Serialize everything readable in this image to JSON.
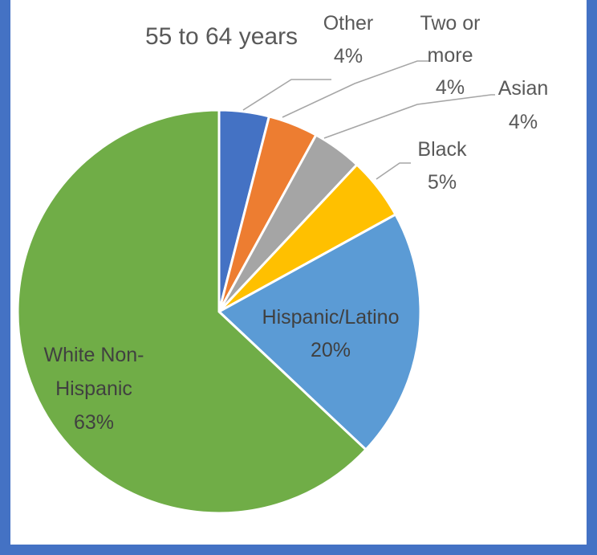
{
  "chart_data": {
    "type": "pie",
    "title": "55 to 64 years",
    "slices": [
      {
        "name": "Other",
        "value": 4,
        "value_label": "4%",
        "color": "#4472C4"
      },
      {
        "name": "Two or more",
        "value": 4,
        "value_label": "4%",
        "color": "#ED7D31"
      },
      {
        "name": "Asian",
        "value": 4,
        "value_label": "4%",
        "color": "#A5A5A5"
      },
      {
        "name": "Black",
        "value": 5,
        "value_label": "5%",
        "color": "#FFC000"
      },
      {
        "name": "Hispanic/Latino",
        "value": 20,
        "value_label": "20%",
        "color": "#5B9BD5"
      },
      {
        "name": "White Non-Hispanic",
        "value": 63,
        "value_label": "63%",
        "color": "#70AD47"
      }
    ]
  }
}
